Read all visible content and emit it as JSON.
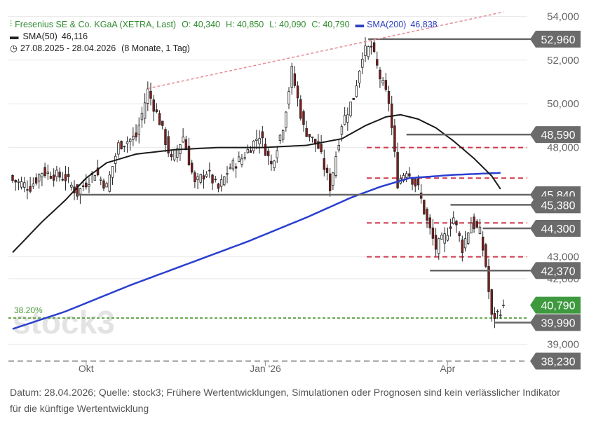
{
  "legend": {
    "instrument": "Fresenius SE & Co. KGaA (XETRA, Last)",
    "open": "O: 40,340",
    "high": "H: 40,850",
    "low": "L: 40,090",
    "close": "C: 40,790",
    "sma200_label": "SMA(200)",
    "sma200_value": "46,838",
    "sma50_label": "SMA(50)",
    "sma50_value": "46,116",
    "period": "27.08.2025 - 28.04.2026",
    "period_detail": "(8 Monate, 1 Tag)"
  },
  "caption": "Datum: 28.04.2026; Quelle: stock3; Frühere Wertentwicklungen, Simulationen oder Prognosen sind kein verlässlicher Indikator für die künftige Wertentwicklung",
  "colors": {
    "up": "#ffffff",
    "down": "#8b1a1a",
    "candle_outline": "#222222",
    "sma50": "#1a1a1a",
    "sma200": "#2a3fd0",
    "fib_line": "#6aa84f",
    "fib_text": "#4a9a3a",
    "resistance": "#d0394a",
    "level_line": "#666666",
    "label_bg": "#6b6b6b",
    "last_label_bg": "#3f9a3f",
    "trendline": "#e58a94",
    "grid": "#e8e8e8"
  },
  "chart_data": {
    "type": "candlestick",
    "title": "Fresenius SE & Co. KGaA (XETRA, Last)",
    "period": "27.08.2025 - 28.04.2026",
    "ylim": [
      37.7,
      54.3
    ],
    "y_ticks": [
      "39,000",
      "42,000",
      "43,000",
      "48,000",
      "50,000",
      "52,000",
      "54,000"
    ],
    "x_ticks": [
      {
        "label": "Okt",
        "index": 25
      },
      {
        "label": "Jan '26",
        "index": 86
      },
      {
        "label": "Apr",
        "index": 148
      }
    ],
    "watermark": "stock3",
    "fib_level": {
      "label": "38.20%",
      "value": 40.2
    },
    "resistance_levels": [
      48.0,
      46.6,
      44.55,
      43.0
    ],
    "horizontal_levels": [
      {
        "value": 52.96,
        "label": "52,960",
        "from": 121,
        "dashed": false
      },
      {
        "value": 48.59,
        "label": "48,590",
        "from": 134,
        "dashed": false
      },
      {
        "value": 45.84,
        "label": "45,840",
        "from": 22,
        "dashed": false
      },
      {
        "value": 45.38,
        "label": "45,380",
        "from": 149,
        "dashed": false
      },
      {
        "value": 44.3,
        "label": "44,300",
        "from": 160,
        "dashed": false
      },
      {
        "value": 42.37,
        "label": "42,370",
        "from": 142,
        "dashed": false
      },
      {
        "value": 40.2,
        "label": "",
        "from": 0,
        "dashed": true
      },
      {
        "value": 39.99,
        "label": "39,990",
        "from": 164,
        "dashed": false
      },
      {
        "value": 38.23,
        "label": "38,230",
        "from": 0,
        "dashed": true
      }
    ],
    "last_price": {
      "value": 40.79,
      "label": "40,790"
    },
    "trendline": [
      {
        "index": 46,
        "value": 50.7
      },
      {
        "index": 167,
        "value": 54.2
      }
    ],
    "close_anchors": [
      [
        0,
        46.5
      ],
      [
        6,
        46.2
      ],
      [
        10,
        46.9
      ],
      [
        18,
        46.6
      ],
      [
        22,
        45.9
      ],
      [
        28,
        46.9
      ],
      [
        32,
        46.2
      ],
      [
        36,
        48.1
      ],
      [
        42,
        48.5
      ],
      [
        46,
        50.6
      ],
      [
        50,
        49.2
      ],
      [
        54,
        47.4
      ],
      [
        58,
        48.5
      ],
      [
        62,
        46.3
      ],
      [
        66,
        46.9
      ],
      [
        70,
        46.1
      ],
      [
        74,
        47.1
      ],
      [
        78,
        47.5
      ],
      [
        84,
        48.6
      ],
      [
        88,
        47.2
      ],
      [
        92,
        49.0
      ],
      [
        95,
        51.5
      ],
      [
        99,
        48.9
      ],
      [
        104,
        48.0
      ],
      [
        108,
        46.2
      ],
      [
        112,
        49.1
      ],
      [
        116,
        50.3
      ],
      [
        119,
        52.3
      ],
      [
        122,
        52.6
      ],
      [
        125,
        51.2
      ],
      [
        128,
        50.1
      ],
      [
        131,
        46.4
      ],
      [
        134,
        47.0
      ],
      [
        138,
        46.1
      ],
      [
        141,
        44.6
      ],
      [
        144,
        43.4
      ],
      [
        147,
        43.9
      ],
      [
        150,
        44.8
      ],
      [
        153,
        43.4
      ],
      [
        156,
        44.6
      ],
      [
        159,
        44.1
      ],
      [
        161,
        42.6
      ],
      [
        163,
        40.2
      ],
      [
        165,
        40.4
      ],
      [
        167,
        40.79
      ]
    ],
    "sma50_anchors": [
      [
        0,
        43.2
      ],
      [
        10,
        44.6
      ],
      [
        18,
        45.6
      ],
      [
        25,
        46.6
      ],
      [
        32,
        47.3
      ],
      [
        42,
        47.7
      ],
      [
        55,
        47.9
      ],
      [
        70,
        48.0
      ],
      [
        85,
        48.0
      ],
      [
        100,
        48.1
      ],
      [
        112,
        48.4
      ],
      [
        120,
        49.0
      ],
      [
        127,
        49.4
      ],
      [
        132,
        49.5
      ],
      [
        138,
        49.3
      ],
      [
        144,
        48.9
      ],
      [
        150,
        48.3
      ],
      [
        157,
        47.5
      ],
      [
        163,
        46.7
      ],
      [
        166,
        46.1
      ]
    ],
    "sma200_anchors": [
      [
        0,
        39.7
      ],
      [
        18,
        40.5
      ],
      [
        40,
        41.7
      ],
      [
        60,
        42.7
      ],
      [
        80,
        43.7
      ],
      [
        100,
        44.8
      ],
      [
        115,
        45.7
      ],
      [
        125,
        46.2
      ],
      [
        135,
        46.6
      ],
      [
        150,
        46.75
      ],
      [
        166,
        46.84
      ]
    ]
  }
}
